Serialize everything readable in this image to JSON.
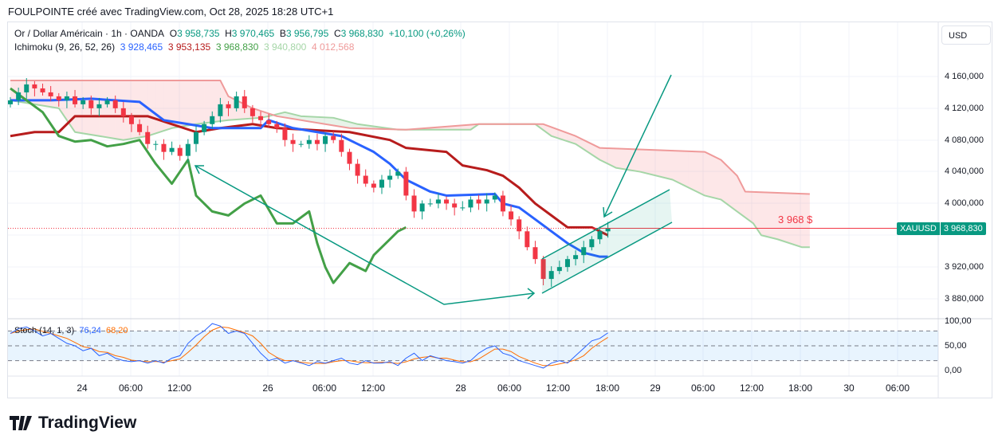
{
  "caption": "FOULPOINTE créé avec TradingView.com, Oct 28, 2025 18:28 UTC+1",
  "symbol": {
    "name": "Or / Dollar Américain · 1h · OANDA",
    "o_label": "O",
    "o": "3 958,735",
    "h_label": "H",
    "h": "3 970,465",
    "b_label": "B",
    "b": "3 956,795",
    "c_label": "C",
    "c": "3 968,830",
    "change": "+10,100 (+0,26%)"
  },
  "ichimoku": {
    "label": "Ichimoku (9, 26, 52, 26)",
    "v1": "3 928,465",
    "v2": "3 953,135",
    "v3": "3 968,830",
    "v4": "3 940,800",
    "v5": "4 012,568"
  },
  "stoch": {
    "label": "Stoch (14, 1, 3)",
    "k": "76,24",
    "d": "68,20"
  },
  "currency_button": "USD",
  "price_labels": [
    "4 160,000",
    "4 120,000",
    "4 080,000",
    "4 040,000",
    "4 000,000",
    "3 920,000",
    "3 880,000"
  ],
  "stoch_labels": [
    "100,00",
    "50,00",
    "0,00"
  ],
  "time_labels": [
    "24",
    "06:00",
    "12:00",
    "26",
    "06:00",
    "12:00",
    "28",
    "06:00",
    "12:00",
    "18:00",
    "29",
    "06:00",
    "12:00",
    "18:00",
    "30",
    "06:00"
  ],
  "last_price": {
    "ticker": "XAUUSD",
    "value": "3 968,830",
    "annotation": "3 968 $"
  },
  "brand": "TradingView",
  "colors": {
    "up": "#089981",
    "down": "#f23645",
    "tenkan": "#2962ff",
    "kijun": "#b71c1c",
    "chikou": "#43a047",
    "spanA": "#a5d6a7",
    "spanB": "#ef9a9a",
    "stochK": "#2962ff",
    "stochD": "#ff6d00"
  },
  "chart_data": {
    "type": "candlestick",
    "ylim": [
      3860,
      4180
    ],
    "closes": [
      4130,
      4140,
      4150,
      4145,
      4140,
      4135,
      4130,
      4135,
      4125,
      4130,
      4120,
      4125,
      4130,
      4120,
      4110,
      4100,
      4090,
      4075,
      4075,
      4065,
      4070,
      4060,
      4075,
      4090,
      4100,
      4110,
      4125,
      4120,
      4135,
      4120,
      4110,
      4105,
      4100,
      4095,
      4080,
      4075,
      4075,
      4080,
      4075,
      4085,
      4080,
      4065,
      4050,
      4035,
      4025,
      4020,
      4030,
      4035,
      4040,
      4010,
      3990,
      4000,
      4000,
      4005,
      4000,
      3995,
      3995,
      4005,
      4000,
      4005,
      4010,
      3990,
      3980,
      3965,
      3945,
      3930,
      3905,
      3915,
      3920,
      3930,
      3935,
      3945,
      3955,
      3965,
      3968.83
    ],
    "tenkan": [
      [
        0,
        4130
      ],
      [
        5,
        4130
      ],
      [
        10,
        4132
      ],
      [
        16,
        4128
      ],
      [
        19,
        4105
      ],
      [
        22,
        4100
      ],
      [
        25,
        4095
      ],
      [
        31,
        4095
      ],
      [
        32,
        4105
      ],
      [
        35,
        4095
      ],
      [
        38,
        4090
      ],
      [
        41,
        4085
      ],
      [
        43,
        4075
      ],
      [
        45,
        4065
      ],
      [
        47,
        4050
      ],
      [
        49,
        4030
      ],
      [
        52,
        4015
      ],
      [
        54,
        4010
      ],
      [
        60,
        4012
      ],
      [
        61,
        4000
      ],
      [
        63,
        3995
      ],
      [
        65,
        3980
      ],
      [
        67,
        3965
      ],
      [
        69,
        3950
      ],
      [
        71,
        3938
      ],
      [
        73,
        3933
      ],
      [
        74,
        3933
      ]
    ],
    "kijun": [
      [
        0,
        4085
      ],
      [
        3,
        4090
      ],
      [
        6,
        4090
      ],
      [
        8,
        4110
      ],
      [
        17,
        4110
      ],
      [
        20,
        4100
      ],
      [
        23,
        4090
      ],
      [
        26,
        4095
      ],
      [
        30,
        4100
      ],
      [
        33,
        4095
      ],
      [
        42,
        4090
      ],
      [
        47,
        4080
      ],
      [
        49,
        4070
      ],
      [
        54,
        4065
      ],
      [
        56,
        4048
      ],
      [
        59,
        4042
      ],
      [
        61,
        4035
      ],
      [
        63,
        4020
      ],
      [
        65,
        4000
      ],
      [
        67,
        3985
      ],
      [
        69,
        3970
      ],
      [
        72,
        3970
      ],
      [
        74,
        3960
      ]
    ],
    "chikou": [
      [
        0,
        4145
      ],
      [
        2,
        4130
      ],
      [
        4,
        4115
      ],
      [
        6,
        4085
      ],
      [
        8,
        4078
      ],
      [
        10,
        4080
      ],
      [
        12,
        4072
      ],
      [
        14,
        4075
      ],
      [
        16,
        4080
      ],
      [
        18,
        4050
      ],
      [
        20,
        4025
      ],
      [
        21,
        4040
      ],
      [
        22,
        4055
      ],
      [
        23,
        4010
      ],
      [
        25,
        3990
      ],
      [
        27,
        3985
      ],
      [
        29,
        4000
      ],
      [
        31,
        4010
      ],
      [
        33,
        3975
      ],
      [
        35,
        3975
      ],
      [
        37,
        3990
      ],
      [
        38,
        3950
      ],
      [
        39,
        3920
      ],
      [
        40,
        3900
      ],
      [
        42,
        3925
      ],
      [
        44,
        3915
      ],
      [
        45,
        3935
      ],
      [
        47,
        3955
      ],
      [
        48,
        3965
      ],
      [
        49,
        3970
      ]
    ],
    "spanA": [
      [
        0,
        4130
      ],
      [
        6,
        4120
      ],
      [
        8,
        4090
      ],
      [
        14,
        4080
      ],
      [
        17,
        4085
      ],
      [
        20,
        4095
      ],
      [
        23,
        4100
      ],
      [
        27,
        4105
      ],
      [
        31,
        4108
      ],
      [
        32,
        4110
      ],
      [
        34,
        4115
      ],
      [
        36,
        4110
      ],
      [
        40,
        4108
      ],
      [
        43,
        4100
      ],
      [
        48,
        4093
      ],
      [
        57,
        4093
      ],
      [
        58,
        4100
      ],
      [
        65,
        4100
      ],
      [
        67,
        4085
      ],
      [
        70,
        4075
      ],
      [
        73,
        4055
      ],
      [
        75,
        4045
      ],
      [
        78,
        4040
      ],
      [
        82,
        4030
      ],
      [
        86,
        4010
      ],
      [
        88,
        4005
      ],
      [
        90,
        3990
      ],
      [
        92,
        3975
      ],
      [
        93,
        3960
      ],
      [
        95,
        3955
      ],
      [
        98,
        3945
      ],
      [
        99,
        3945
      ]
    ],
    "spanB": [
      [
        0,
        4155
      ],
      [
        26,
        4155
      ],
      [
        27,
        4135
      ],
      [
        30,
        4120
      ],
      [
        33,
        4110
      ],
      [
        42,
        4095
      ],
      [
        49,
        4093
      ],
      [
        58,
        4100
      ],
      [
        66,
        4100
      ],
      [
        70,
        4085
      ],
      [
        73,
        4070
      ],
      [
        86,
        4065
      ],
      [
        88,
        4055
      ],
      [
        90,
        4035
      ],
      [
        91,
        4015
      ],
      [
        99,
        4012
      ]
    ],
    "stochK": [
      75,
      85,
      88,
      80,
      70,
      75,
      65,
      55,
      50,
      40,
      45,
      30,
      35,
      25,
      20,
      18,
      20,
      15,
      20,
      15,
      25,
      30,
      55,
      70,
      80,
      95,
      90,
      75,
      80,
      75,
      55,
      35,
      20,
      25,
      15,
      20,
      15,
      10,
      18,
      15,
      20,
      25,
      15,
      12,
      20,
      15,
      15,
      18,
      10,
      25,
      35,
      20,
      30,
      25,
      20,
      18,
      15,
      20,
      35,
      45,
      50,
      35,
      30,
      20,
      15,
      10,
      5,
      15,
      20,
      15,
      30,
      45,
      60,
      65,
      76.24
    ],
    "stoch_ylim": [
      0,
      100
    ]
  }
}
